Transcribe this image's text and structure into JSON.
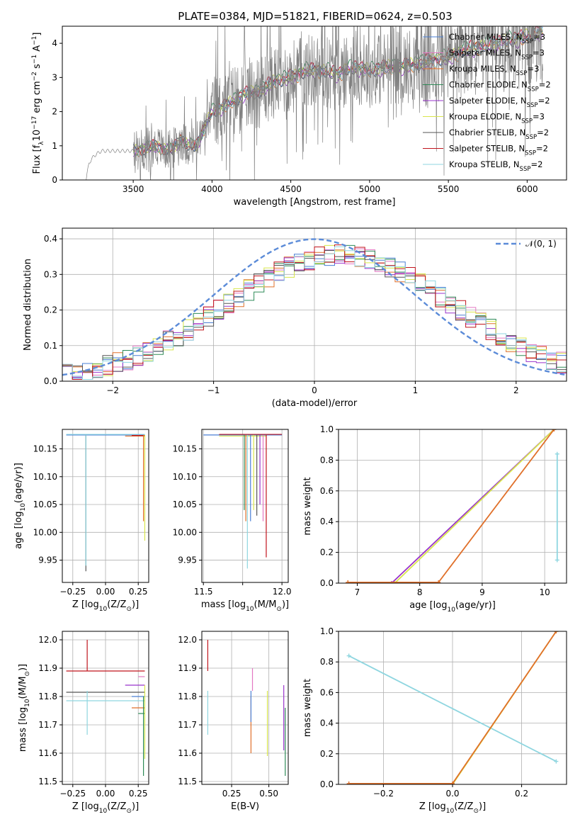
{
  "title": "PLATE=0384, MJD=51821, FIBERID=0624, z=0.503",
  "series_names": [
    "Chabrier MILES, N_SSP=3",
    "Salpeter MILES, N_SSP=3",
    "Kroupa MILES, N_SSP=3",
    "Chabrier ELODIE, N_SSP=2",
    "Salpeter ELODIE, N_SSP=2",
    "Kroupa ELODIE, N_SSP=3",
    "Chabrier STELIB, N_SSP=2",
    "Salpeter STELIB, N_SSP=2",
    "Kroupa STELIB, N_SSP=2"
  ],
  "series_colors": [
    "#4a7fd4",
    "#e377c2",
    "#e0702a",
    "#2e8b57",
    "#9933cc",
    "#d8e64c",
    "#555555",
    "#c0141c",
    "#8fd6e0"
  ],
  "gauss_color": "#5b8bd8",
  "chart_data": [
    {
      "id": "spectrum",
      "type": "line",
      "xlabel": "wavelength [Angstrom, rest frame]",
      "ylabel": "Flux [f_λ 10^-17 erg cm^-2 s^-1 A^-1]",
      "xlim": [
        3050,
        6250
      ],
      "ylim": [
        0,
        4.5
      ],
      "xticks": [
        "3500",
        "4000",
        "4500",
        "5000",
        "5500",
        "6000"
      ],
      "yticks": [
        "0",
        "1",
        "2",
        "3",
        "4"
      ],
      "grid": false,
      "legend": "top-right",
      "data_x": [
        3200,
        3220,
        3250,
        3280,
        3300,
        3350,
        3400,
        3450,
        3500,
        3550,
        3600,
        3650,
        3700,
        3750,
        3800,
        3850,
        3900,
        3950,
        4000,
        4100,
        4200,
        4300,
        4400,
        4500,
        4600,
        4700,
        4800,
        4900,
        5000,
        5100,
        5200,
        5300,
        5400,
        5500,
        5600,
        5700,
        5800,
        5900,
        6000,
        6100
      ],
      "data_y": [
        0.0,
        0.5,
        0.7,
        0.8,
        0.85,
        0.85,
        0.85,
        0.85,
        0.85,
        0.9,
        0.95,
        1.0,
        0.9,
        0.9,
        1.2,
        1.0,
        1.0,
        1.5,
        2.0,
        2.2,
        2.5,
        2.6,
        2.9,
        3.0,
        3.2,
        3.2,
        3.1,
        3.3,
        3.2,
        3.3,
        3.3,
        3.4,
        3.5,
        3.6,
        3.8,
        3.9,
        4.0,
        4.1,
        4.2,
        4.4
      ],
      "model_offsets": [
        0.0,
        0.05,
        -0.05,
        0.08,
        -0.08,
        0.03,
        -0.03,
        0.06,
        -0.02
      ]
    },
    {
      "id": "residuals",
      "type": "line",
      "xlabel": "(data-model)/error",
      "ylabel": "Normed distribution",
      "xlim": [
        -2.5,
        2.5
      ],
      "ylim": [
        0,
        0.43
      ],
      "xticks": [
        "−2",
        "−1",
        "0",
        "1",
        "2"
      ],
      "yticks": [
        "0.0",
        "0.1",
        "0.2",
        "0.3",
        "0.4"
      ],
      "grid": true,
      "legend": "top-right",
      "gauss_label": "𝒩(0, 1)",
      "hist_center": 0.25,
      "hist_sigma": 1.12,
      "hist_peak": 0.355
    },
    {
      "id": "age-vs-Z",
      "type": "line",
      "xlabel": "Z [log10(Z/Z⊙)]",
      "ylabel": "age  [log10(age/yr)]",
      "xlim": [
        -0.33,
        0.33
      ],
      "ylim": [
        9.91,
        10.185
      ],
      "xticks": [
        "−0.25",
        "0.00",
        "0.25"
      ],
      "yticks": [
        "9.95",
        "10.00",
        "10.05",
        "10.10",
        "10.15"
      ],
      "grid": true,
      "vlines": [
        {
          "x": -0.15,
          "y0": 9.93,
          "y1": 10.175,
          "s": 6
        },
        {
          "x": -0.15,
          "y0": 9.94,
          "y1": 10.175,
          "s": 8
        },
        {
          "x": 0.29,
          "y0": 10.02,
          "y1": 10.175,
          "s": 2
        },
        {
          "x": 0.3,
          "y0": 9.985,
          "y1": 10.175,
          "s": 5
        }
      ],
      "hlines": [
        {
          "y": 10.175,
          "x0": -0.3,
          "x1": 0.3,
          "s": 0
        },
        {
          "y": 10.176,
          "x0": -0.3,
          "x1": 0.3,
          "s": 8
        },
        {
          "y": 10.173,
          "x0": 0.15,
          "x1": 0.3,
          "s": 2
        },
        {
          "y": 10.174,
          "x0": 0.2,
          "x1": 0.3,
          "s": 7
        }
      ]
    },
    {
      "id": "age-vs-mass",
      "type": "line",
      "xlabel": "mass [log10(M/M⊙)]",
      "ylabel": "",
      "xlim": [
        11.49,
        12.04
      ],
      "ylim": [
        9.91,
        10.185
      ],
      "xticks": [
        "11.5",
        "11.75",
        "12.0"
      ],
      "yticks": [
        "9.95",
        "10.00",
        "10.05",
        "10.10",
        "10.15"
      ],
      "xticks_labeled": [
        "11.5",
        "",
        "12.0"
      ],
      "grid": true,
      "vlines": [
        {
          "x": 11.76,
          "y0": 10.04,
          "y1": 10.175,
          "s": 3
        },
        {
          "x": 11.77,
          "y0": 10.02,
          "y1": 10.175,
          "s": 2
        },
        {
          "x": 11.78,
          "y0": 9.935,
          "y1": 10.175,
          "s": 8
        },
        {
          "x": 11.8,
          "y0": 10.02,
          "y1": 10.175,
          "s": 0
        },
        {
          "x": 11.82,
          "y0": 10.04,
          "y1": 10.175,
          "s": 5
        },
        {
          "x": 11.84,
          "y0": 10.03,
          "y1": 10.175,
          "s": 6
        },
        {
          "x": 11.86,
          "y0": 10.05,
          "y1": 10.175,
          "s": 4
        },
        {
          "x": 11.88,
          "y0": 10.02,
          "y1": 10.175,
          "s": 1
        },
        {
          "x": 11.9,
          "y0": 9.955,
          "y1": 10.175,
          "s": 7
        }
      ],
      "hlines": [
        {
          "y": 10.175,
          "x0": 11.5,
          "x1": 12.0,
          "s": 0
        },
        {
          "y": 10.176,
          "x0": 11.6,
          "x1": 12.0,
          "s": 7
        },
        {
          "y": 10.173,
          "x0": 11.6,
          "x1": 11.9,
          "s": 5
        }
      ]
    },
    {
      "id": "massweight-vs-age",
      "type": "line",
      "xlabel": "age  [log10(age/yr)]",
      "ylabel": "mass weight",
      "xlim": [
        6.7,
        10.35
      ],
      "ylim": [
        0,
        1.0
      ],
      "xticks": [
        "7",
        "8",
        "9",
        "10"
      ],
      "yticks": [
        "0.0",
        "0.2",
        "0.4",
        "0.6",
        "0.8",
        "1.0"
      ],
      "grid": true,
      "lines": [
        {
          "s": 4,
          "pts": [
            [
              6.85,
              0.0
            ],
            [
              7.55,
              0.0
            ],
            [
              10.15,
              1.0
            ]
          ]
        },
        {
          "s": 5,
          "pts": [
            [
              6.85,
              0.0
            ],
            [
              7.6,
              0.0
            ],
            [
              10.15,
              1.0
            ]
          ]
        },
        {
          "s": 2,
          "pts": [
            [
              6.85,
              0.005
            ],
            [
              8.3,
              0.005
            ],
            [
              10.15,
              1.0
            ]
          ]
        },
        {
          "s": 8,
          "pts": [
            [
              10.2,
              0.15
            ],
            [
              10.2,
              0.84
            ]
          ]
        }
      ]
    },
    {
      "id": "mass-vs-Z",
      "type": "line",
      "xlabel": "Z [log10(Z/Z⊙)]",
      "ylabel": "mass [log10(M/M⊙)]",
      "xlim": [
        -0.33,
        0.33
      ],
      "ylim": [
        11.49,
        12.03
      ],
      "xticks": [
        "−0.25",
        "0.00",
        "0.25"
      ],
      "yticks": [
        "11.5",
        "11.6",
        "11.7",
        "11.8",
        "11.9",
        "12.0"
      ],
      "grid": true,
      "vlines": [
        {
          "x": -0.14,
          "y0": 11.89,
          "y1": 12.0,
          "s": 7
        },
        {
          "x": -0.14,
          "y0": 11.665,
          "y1": 11.82,
          "s": 8
        },
        {
          "x": 0.29,
          "y0": 11.52,
          "y1": 11.8,
          "s": 3
        },
        {
          "x": 0.3,
          "y0": 11.58,
          "y1": 11.84,
          "s": 5
        }
      ],
      "hlines": [
        {
          "y": 11.89,
          "x0": -0.3,
          "x1": 0.3,
          "s": 7
        },
        {
          "y": 11.815,
          "x0": -0.3,
          "x1": 0.3,
          "s": 6
        },
        {
          "y": 11.785,
          "x0": -0.3,
          "x1": 0.3,
          "s": 8
        },
        {
          "y": 11.84,
          "x0": 0.15,
          "x1": 0.3,
          "s": 4
        },
        {
          "y": 11.87,
          "x0": 0.25,
          "x1": 0.3,
          "s": 1
        },
        {
          "y": 11.76,
          "x0": 0.2,
          "x1": 0.3,
          "s": 2
        },
        {
          "y": 11.8,
          "x0": 0.2,
          "x1": 0.3,
          "s": 0
        },
        {
          "y": 11.74,
          "x0": 0.25,
          "x1": 0.3,
          "s": 3
        }
      ]
    },
    {
      "id": "mass-vs-EBV",
      "type": "line",
      "xlabel": "E(B-V)",
      "ylabel": "",
      "xlim": [
        0.05,
        0.63
      ],
      "ylim": [
        11.49,
        12.03
      ],
      "xticks": [
        "0.25",
        "0.50"
      ],
      "yticks": [
        "11.5",
        "11.6",
        "11.7",
        "11.8",
        "11.9",
        "12.0"
      ],
      "grid": true,
      "vlines": [
        {
          "x": 0.09,
          "y0": 11.89,
          "y1": 12.0,
          "s": 7
        },
        {
          "x": 0.09,
          "y0": 11.665,
          "y1": 11.82,
          "s": 8
        },
        {
          "x": 0.38,
          "y0": 11.6,
          "y1": 11.8,
          "s": 2
        },
        {
          "x": 0.38,
          "y0": 11.71,
          "y1": 11.82,
          "s": 0
        },
        {
          "x": 0.39,
          "y0": 11.82,
          "y1": 11.9,
          "s": 1
        },
        {
          "x": 0.49,
          "y0": 11.59,
          "y1": 11.82,
          "s": 5
        },
        {
          "x": 0.6,
          "y0": 11.61,
          "y1": 11.84,
          "s": 4
        },
        {
          "x": 0.61,
          "y0": 11.52,
          "y1": 11.76,
          "s": 3
        }
      ]
    },
    {
      "id": "massweight-vs-Z",
      "type": "line",
      "xlabel": "Z [log10(Z/Z⊙)]",
      "ylabel": "mass weight",
      "xlim": [
        -0.33,
        0.33
      ],
      "ylim": [
        0,
        1.0
      ],
      "xticks": [
        "−0.2",
        "0.0",
        "0.2"
      ],
      "yticks": [
        "0.0",
        "0.2",
        "0.4",
        "0.6",
        "0.8",
        "1.0"
      ],
      "grid": true,
      "lines": [
        {
          "s": 8,
          "pts": [
            [
              -0.3,
              0.84
            ],
            [
              0.3,
              0.15
            ]
          ]
        },
        {
          "s": 5,
          "pts": [
            [
              0.0,
              0.0
            ],
            [
              0.3,
              1.0
            ]
          ]
        },
        {
          "s": 2,
          "pts": [
            [
              -0.3,
              0.005
            ],
            [
              0.0,
              0.005
            ],
            [
              0.3,
              1.0
            ]
          ]
        }
      ]
    }
  ]
}
